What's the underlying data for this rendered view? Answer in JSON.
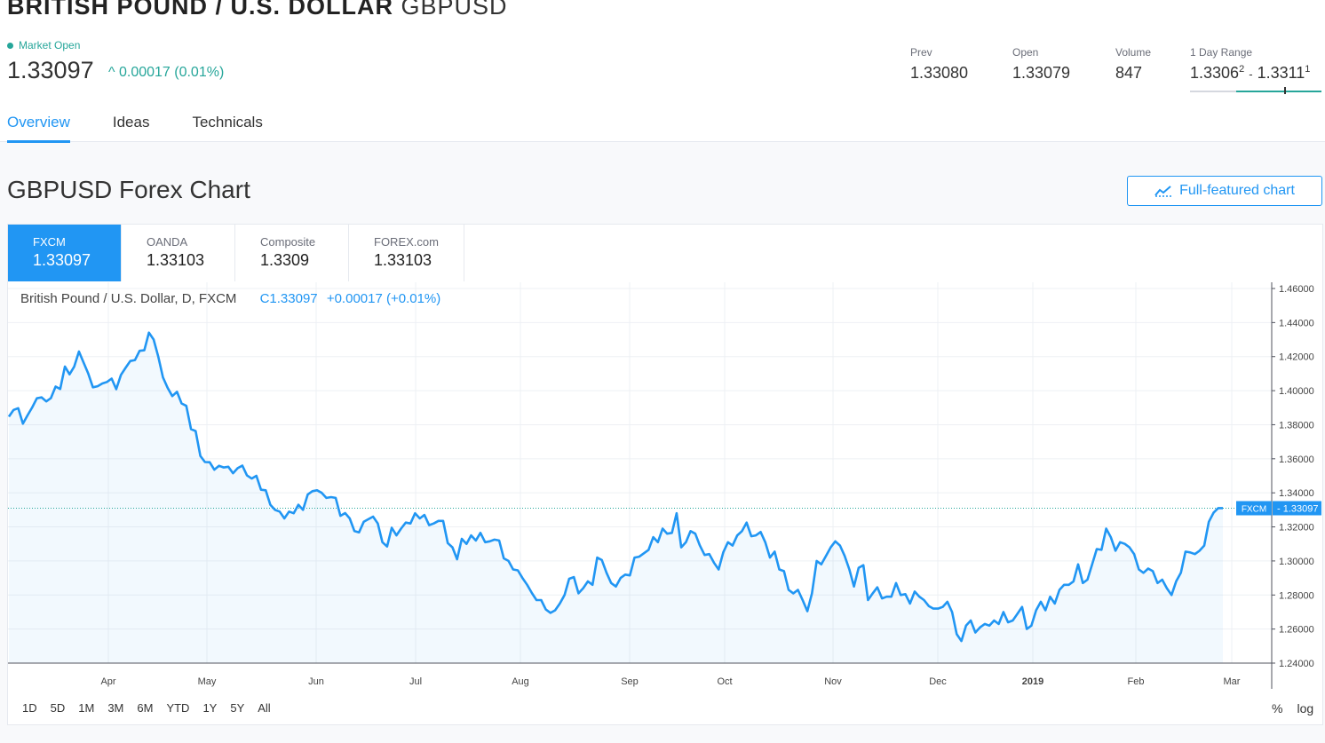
{
  "header": {
    "name": "BRITISH POUND / U.S. DOLLAR",
    "symbol": "GBPUSD",
    "market_status": "Market Open",
    "price": "1.33097",
    "change": "0.00017 (0.01%)",
    "change_arrow": "^"
  },
  "stats": {
    "prev_label": "Prev",
    "prev": "1.33080",
    "open_label": "Open",
    "open": "1.33079",
    "volume_label": "Volume",
    "volume": "847",
    "range_label": "1 Day Range",
    "range_low_main": "1.3306",
    "range_low_sup": "2",
    "range_sep": "-",
    "range_high_main": "1.3311",
    "range_high_sup": "1",
    "range_position": 0.72
  },
  "tabs": [
    {
      "label": "Overview",
      "active": true
    },
    {
      "label": "Ideas",
      "active": false
    },
    {
      "label": "Technicals",
      "active": false
    }
  ],
  "section_title": "GBPUSD Forex Chart",
  "full_chart_label": "Full-featured chart",
  "sources": [
    {
      "name": "FXCM",
      "value": "1.33097",
      "active": true
    },
    {
      "name": "OANDA",
      "value": "1.33103",
      "active": false
    },
    {
      "name": "Composite",
      "value": "1.3309",
      "active": false
    },
    {
      "name": "FOREX.com",
      "value": "1.33103",
      "active": false
    }
  ],
  "legend": {
    "text": "British Pound / U.S. Dollar, D, FXCM",
    "c_label": "C",
    "c_value": "1.33097",
    "change": "+0.00017 (+0.01%)"
  },
  "ranges": [
    "1D",
    "5D",
    "1M",
    "3M",
    "6M",
    "YTD",
    "1Y",
    "5Y",
    "All"
  ],
  "scale_options": [
    "%",
    "log"
  ],
  "colors": {
    "accent": "#2196f3",
    "positive": "#26a69a",
    "line": "#2196f3"
  },
  "chart_data": {
    "type": "line",
    "series": [
      {
        "name": "FXCM",
        "values": [
          1.3847,
          1.3887,
          1.3897,
          1.3806,
          1.3855,
          1.3902,
          1.3955,
          1.3961,
          1.3937,
          1.3956,
          1.4024,
          1.401,
          1.4142,
          1.4096,
          1.4142,
          1.423,
          1.4165,
          1.41,
          1.402,
          1.4026,
          1.4042,
          1.4051,
          1.4071,
          1.4009,
          1.4093,
          1.4134,
          1.4174,
          1.418,
          1.4234,
          1.4237,
          1.4341,
          1.43,
          1.42,
          1.4078,
          1.4016,
          1.3968,
          1.3993,
          1.3925,
          1.3911,
          1.3774,
          1.3763,
          1.3617,
          1.3581,
          1.358,
          1.3536,
          1.3559,
          1.3549,
          1.3553,
          1.3515,
          1.3545,
          1.356,
          1.3502,
          1.3484,
          1.35,
          1.3418,
          1.3415,
          1.333,
          1.33,
          1.329,
          1.325,
          1.329,
          1.328,
          1.333,
          1.33,
          1.339,
          1.341,
          1.3415,
          1.34,
          1.337,
          1.3375,
          1.337,
          1.3265,
          1.3281,
          1.325,
          1.3175,
          1.3168,
          1.323,
          1.3245,
          1.326,
          1.322,
          1.311,
          1.3085,
          1.3195,
          1.315,
          1.319,
          1.3225,
          1.322,
          1.328,
          1.325,
          1.327,
          1.321,
          1.322,
          1.3235,
          1.3235,
          1.3105,
          1.308,
          1.301,
          1.313,
          1.31,
          1.315,
          1.312,
          1.3165,
          1.311,
          1.3115,
          1.3125,
          1.312,
          1.3015,
          1.3,
          1.295,
          1.2945,
          1.29,
          1.286,
          1.2812,
          1.277,
          1.277,
          1.2715,
          1.2695,
          1.271,
          1.275,
          1.28,
          1.2895,
          1.2905,
          1.281,
          1.284,
          1.288,
          1.286,
          1.302,
          1.3005,
          1.293,
          1.287,
          1.285,
          1.29,
          1.292,
          1.2915,
          1.302,
          1.3025,
          1.3045,
          1.3065,
          1.314,
          1.311,
          1.319,
          1.316,
          1.3165,
          1.328,
          1.308,
          1.311,
          1.3175,
          1.316,
          1.309,
          1.3035,
          1.304,
          1.299,
          1.295,
          1.305,
          1.311,
          1.309,
          1.315,
          1.3175,
          1.3225,
          1.3145,
          1.315,
          1.317,
          1.311,
          1.302,
          1.3055,
          1.295,
          1.294,
          1.283,
          1.281,
          1.283,
          1.277,
          1.2705,
          1.281,
          1.3,
          1.298,
          1.303,
          1.308,
          1.3115,
          1.309,
          1.303,
          1.295,
          1.285,
          1.296,
          1.2975,
          1.277,
          1.281,
          1.2845,
          1.278,
          1.279,
          1.279,
          1.287,
          1.28,
          1.2805,
          1.275,
          1.282,
          1.279,
          1.277,
          1.2735,
          1.272,
          1.272,
          1.273,
          1.276,
          1.27,
          1.257,
          1.253,
          1.262,
          1.265,
          1.258,
          1.261,
          1.263,
          1.262,
          1.265,
          1.263,
          1.27,
          1.264,
          1.265,
          1.269,
          1.273,
          1.26,
          1.262,
          1.271,
          1.276,
          1.271,
          1.279,
          1.275,
          1.283,
          1.286,
          1.286,
          1.288,
          1.298,
          1.287,
          1.289,
          1.298,
          1.307,
          1.3065,
          1.319,
          1.314,
          1.306,
          1.311,
          1.31,
          1.308,
          1.304,
          1.295,
          1.293,
          1.2955,
          1.294,
          1.287,
          1.289,
          1.284,
          1.28,
          1.288,
          1.293,
          1.3055,
          1.305,
          1.304,
          1.306,
          1.309,
          1.323,
          1.3283,
          1.331,
          1.331
        ]
      }
    ],
    "ylim": [
      1.24,
      1.46
    ],
    "yticks": [
      "1.24000",
      "1.26000",
      "1.28000",
      "1.30000",
      "1.32000",
      "1.34000",
      "1.36000",
      "1.38000",
      "1.40000",
      "1.42000",
      "1.44000",
      "1.46000"
    ],
    "xticks": [
      "Apr",
      "May",
      "Jun",
      "Jul",
      "Aug",
      "Sep",
      "Oct",
      "Nov",
      "Dec",
      "2019",
      "Feb",
      "Mar"
    ],
    "last_value_label": "FXCM",
    "last_value": "1.33097",
    "grid": true
  }
}
